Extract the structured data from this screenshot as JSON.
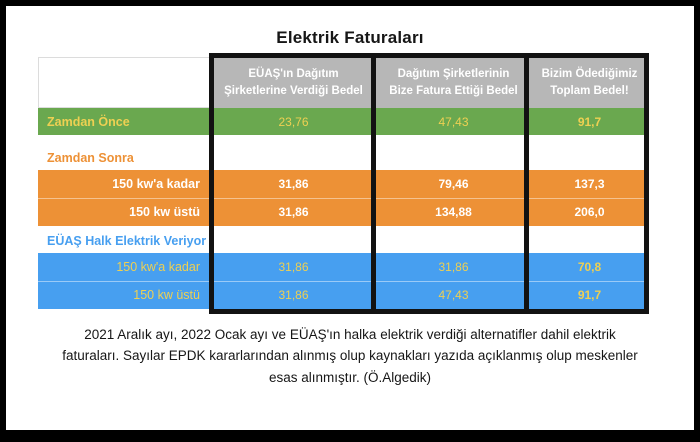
{
  "title": "Elektrik Faturaları",
  "colors": {
    "green": "#6aa84f",
    "orange": "#ed9136",
    "blue": "#479ff0",
    "gray": "#b7b7b7",
    "yellow": "#eed052"
  },
  "table": {
    "corner_label": "",
    "columns": [
      "EÜAŞ'ın Dağıtım\nŞirketlerine Verdiği Bedel",
      "Dağıtım Şirketlerinin\nBize Fatura Ettiği Bedel",
      "Bizim Ödediğimiz\nToplam Bedel!"
    ],
    "rows": [
      {
        "label": "Zamdan Önce",
        "values": [
          "23,76",
          "47,43",
          "91,7"
        ]
      },
      {
        "label": "Zamdan Sonra"
      },
      {
        "label": "150 kw'a kadar",
        "values": [
          "31,86",
          "79,46",
          "137,3"
        ]
      },
      {
        "label": "150 kw üstü",
        "values": [
          "31,86",
          "134,88",
          "206,0"
        ]
      },
      {
        "label": "EÜAŞ Halk Elektrik Veriyor"
      },
      {
        "label": "150 kw'a kadar",
        "values": [
          "31,86",
          "31,86",
          "70,8"
        ]
      },
      {
        "label": "150 kw üstü",
        "values": [
          "31,86",
          "47,43",
          "91,7"
        ]
      }
    ]
  },
  "caption": "2021 Aralık ayı, 2022 Ocak ayı ve EÜAŞ'ın halka elektrik verdiği alternatifler dahil elektrik\nfaturaları. Sayılar EPDK kararlarından alınmış olup kaynakları yazıda açıklanmış olup meskenler\nesas alınmıştır. (Ö.Algedik)",
  "chart_data": {
    "type": "table",
    "title": "Elektrik Faturaları",
    "columns": [
      "EÜAŞ'ın Dağıtım Şirketlerine Verdiği Bedel",
      "Dağıtım Şirketlerinin Bize Fatura Ettiği Bedel",
      "Bizim Ödediğimiz Toplam Bedel!"
    ],
    "rows": [
      {
        "group": null,
        "label": "Zamdan Önce",
        "values": [
          23.76,
          47.43,
          91.7
        ]
      },
      {
        "group": "Zamdan Sonra",
        "label": "150 kw'a kadar",
        "values": [
          31.86,
          79.46,
          137.3
        ]
      },
      {
        "group": "Zamdan Sonra",
        "label": "150 kw üstü",
        "values": [
          31.86,
          134.88,
          206.0
        ]
      },
      {
        "group": "EÜAŞ Halk Elektrik Veriyor",
        "label": "150 kw'a kadar",
        "values": [
          31.86,
          31.86,
          70.8
        ]
      },
      {
        "group": "EÜAŞ Halk Elektrik Veriyor",
        "label": "150 kw üstü",
        "values": [
          31.86,
          47.43,
          91.7
        ]
      }
    ],
    "note": "2021 Aralık ayı, 2022 Ocak ayı ve EÜAŞ'ın halka elektrik verdiği alternatifler dahil elektrik faturaları. Sayılar EPDK kararlarından alınmış olup kaynakları yazıda açıklanmış olup meskenler esas alınmıştır. (Ö.Algedik)"
  }
}
